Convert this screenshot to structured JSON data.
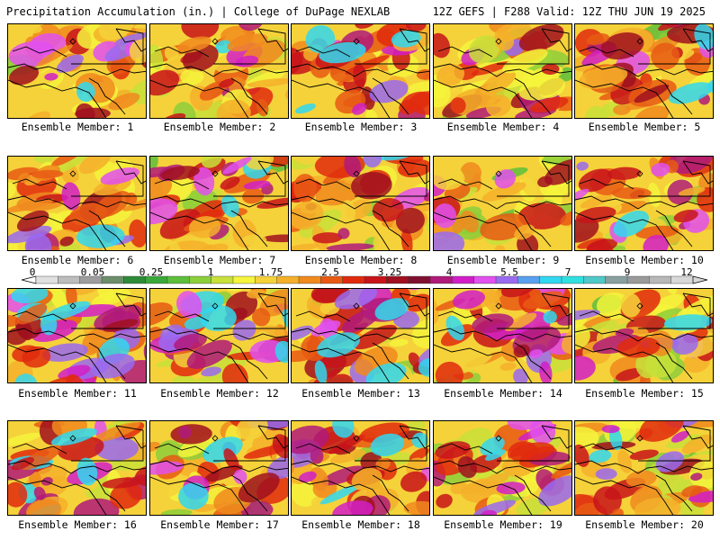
{
  "header": {
    "left": "Precipitation Accumulation (in.) | College of DuPage NEXLAB",
    "right": "12Z GEFS | F288 Valid: 12Z THU JUN 19 2025"
  },
  "panels": [
    {
      "caption": "Ensemble Member: 1",
      "seed": 11,
      "intensity": 0.55
    },
    {
      "caption": "Ensemble Member: 2",
      "seed": 23,
      "intensity": 0.42
    },
    {
      "caption": "Ensemble Member: 3",
      "seed": 37,
      "intensity": 0.75
    },
    {
      "caption": "Ensemble Member: 4",
      "seed": 41,
      "intensity": 0.3
    },
    {
      "caption": "Ensemble Member: 5",
      "seed": 53,
      "intensity": 0.62
    },
    {
      "caption": "Ensemble Member: 6",
      "seed": 67,
      "intensity": 0.6
    },
    {
      "caption": "Ensemble Member: 7",
      "seed": 71,
      "intensity": 0.5
    },
    {
      "caption": "Ensemble Member: 8",
      "seed": 83,
      "intensity": 0.55
    },
    {
      "caption": "Ensemble Member: 9",
      "seed": 97,
      "intensity": 0.28
    },
    {
      "caption": "Ensemble Member: 10",
      "seed": 101,
      "intensity": 0.52
    },
    {
      "caption": "Ensemble Member: 11",
      "seed": 113,
      "intensity": 0.8
    },
    {
      "caption": "Ensemble Member: 12",
      "seed": 127,
      "intensity": 0.58
    },
    {
      "caption": "Ensemble Member: 13",
      "seed": 131,
      "intensity": 0.62
    },
    {
      "caption": "Ensemble Member: 14",
      "seed": 149,
      "intensity": 0.6
    },
    {
      "caption": "Ensemble Member: 15",
      "seed": 151,
      "intensity": 0.38
    },
    {
      "caption": "Ensemble Member: 16",
      "seed": 163,
      "intensity": 0.72
    },
    {
      "caption": "Ensemble Member: 17",
      "seed": 173,
      "intensity": 0.5
    },
    {
      "caption": "Ensemble Member: 18",
      "seed": 181,
      "intensity": 0.65
    },
    {
      "caption": "Ensemble Member: 19",
      "seed": 191,
      "intensity": 0.45
    },
    {
      "caption": "Ensemble Member: 20",
      "seed": 199,
      "intensity": 0.5
    }
  ],
  "colorbar": {
    "labels": [
      "0",
      "0.05",
      "0.25",
      "1",
      "1.75",
      "2.5",
      "3.25",
      "4",
      "5.5",
      "7",
      "9",
      "12"
    ],
    "colors": [
      "#e0e0e0",
      "#bdbdbd",
      "#9e9e9e",
      "#6b8e6b",
      "#2e8b3a",
      "#3aa83a",
      "#5dbf3c",
      "#8ccf3a",
      "#c8e03a",
      "#f5f53c",
      "#f5d23a",
      "#f5b02a",
      "#f08a1e",
      "#e85a14",
      "#e02a0e",
      "#c8141a",
      "#a0101e",
      "#801030",
      "#b01a7a",
      "#d21ec8",
      "#e250f0",
      "#9a6af0",
      "#5aa0f0",
      "#30d8f0",
      "#30e0e0",
      "#50c8c8",
      "#8aa0a0",
      "#9a9a9a",
      "#b8b8b8",
      "#d8d8d8"
    ]
  }
}
